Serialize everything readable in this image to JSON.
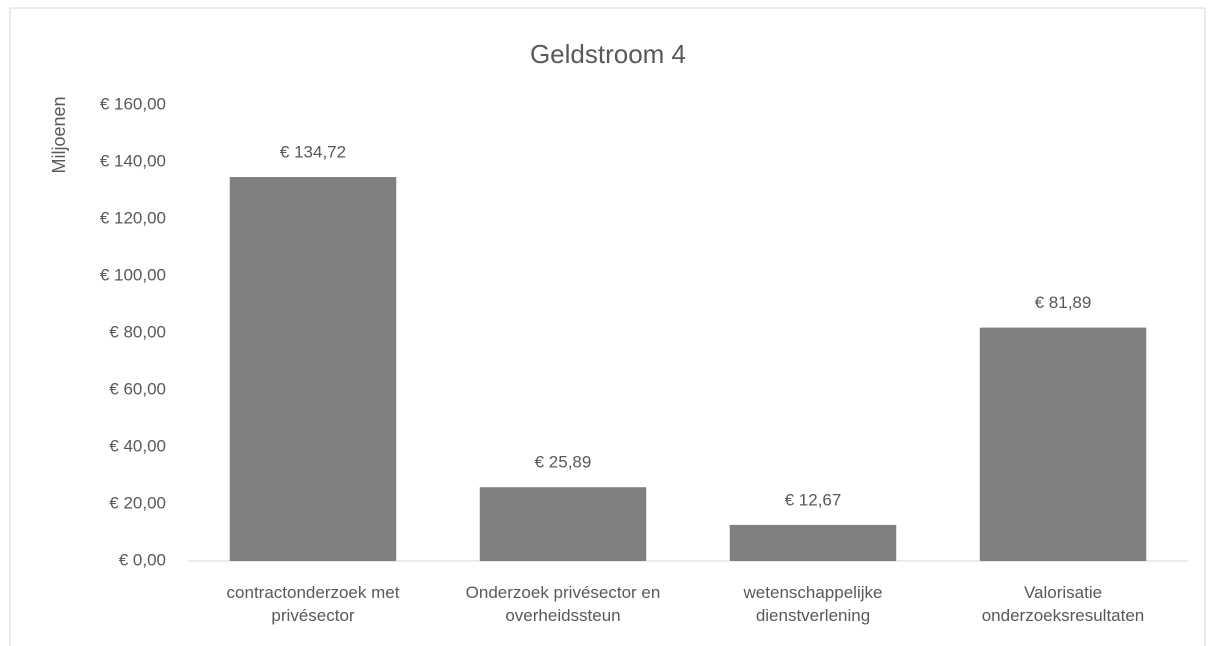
{
  "chart_data": {
    "type": "bar",
    "title": "Geldstroom 4",
    "y_label": "Miljoenen",
    "categories": [
      "contractonderzoek met privésector",
      "Onderzoek privésector en overheidssteun",
      "wetenschappelijke dienstverlening",
      "Valorisatie onderzoeksresultaten"
    ],
    "values": [
      134.72,
      25.89,
      12.67,
      81.89
    ],
    "value_labels": [
      "€ 134,72",
      "€ 25,89",
      "€ 12,67",
      "€ 81,89"
    ],
    "color": "#808080",
    "ylim": [
      0,
      160
    ],
    "yticks": [
      {
        "value": 0,
        "label": "€ 0,00"
      },
      {
        "value": 20,
        "label": "€ 20,00"
      },
      {
        "value": 40,
        "label": "€ 40,00"
      },
      {
        "value": 60,
        "label": "€ 60,00"
      },
      {
        "value": 80,
        "label": "€ 80,00"
      },
      {
        "value": 100,
        "label": "€ 100,00"
      },
      {
        "value": 120,
        "label": "€ 120,00"
      },
      {
        "value": 140,
        "label": "€ 140,00"
      },
      {
        "value": 160,
        "label": "€ 160,00"
      }
    ],
    "grid": false
  }
}
